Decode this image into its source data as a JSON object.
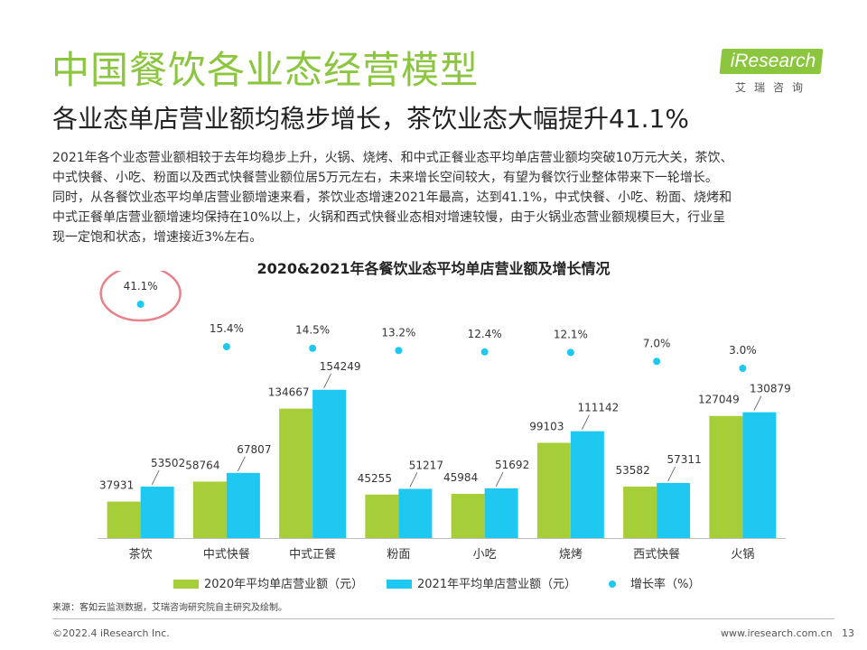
{
  "header": {
    "title": "中国餐饮各业态经营模型",
    "subtitle": "各业态单店营业额均稳步增长，茶饮业态大幅提升41.1%"
  },
  "logo": {
    "name": "iResearch",
    "sub": "艾瑞咨询",
    "color": "#8cc63f"
  },
  "paragraph": [
    "2021年各个业态营业额相较于去年均稳步上升，火锅、烧烤、和中式正餐业态平均单店营业额均突破10万元大关，茶饮、",
    "中式快餐、小吃、粉面以及西式快餐营业额位居5万元左右，未来增长空间较大，有望为餐饮行业整体带来下一轮增长。",
    "同时，从各餐饮业态平均单店营业额增速来看，茶饮业态增速2021年最高，达到41.1%，中式快餐、小吃、粉面、烧烤和",
    "中式正餐单店营业额增速均保持在10%以上，火锅和西式快餐业态相对增速较慢，由于火锅业态营业额规模巨大，行业呈",
    "现一定饱和状态，增速接近3%左右。"
  ],
  "chart_data": {
    "type": "bar",
    "title": "2020&2021年各餐饮业态平均单店营业额及增长情况",
    "categories": [
      "茶饮",
      "中式快餐",
      "中式正餐",
      "粉面",
      "小吃",
      "烧烤",
      "西式快餐",
      "火锅"
    ],
    "series": [
      {
        "name": "2020年平均单店营业额（元）",
        "values": [
          37931,
          58764,
          134667,
          45255,
          45984,
          99103,
          53582,
          127049
        ],
        "color": "#a6ce39"
      },
      {
        "name": "2021年平均单店营业额（元）",
        "values": [
          53502,
          67807,
          154249,
          51217,
          51692,
          111142,
          57311,
          130879
        ],
        "color": "#1ec8f0"
      },
      {
        "name": "增长率（%）",
        "type": "scatter",
        "values": [
          41.1,
          15.4,
          14.5,
          13.2,
          12.4,
          12.1,
          7.0,
          3.0
        ],
        "labels": [
          "41.1%",
          "15.4%",
          "14.5%",
          "13.2%",
          "12.4%",
          "12.1%",
          "7.0%",
          "3.0%"
        ],
        "color": "#1ec8f0"
      }
    ],
    "ylim": [
      0,
      170000
    ],
    "growth_display_range": [
      0,
      45
    ],
    "highlight": {
      "category": "茶饮",
      "series": "增长率（%）",
      "color": "#e8828a"
    },
    "xlabel": "",
    "ylabel": "",
    "grid": false,
    "legend": "bottom"
  },
  "legend": [
    {
      "label": "2020年平均单店营业额（元）",
      "color": "#a6ce39",
      "kind": "bar"
    },
    {
      "label": "2021年平均单店营业额（元）",
      "color": "#1ec8f0",
      "kind": "bar"
    },
    {
      "label": "增长率（%）",
      "color": "#1ec8f0",
      "kind": "dot"
    }
  ],
  "source": "来源：客如云监测数据，艾瑞咨询研究院自主研究及绘制。",
  "footer": {
    "copyright": "©2022.4 iResearch Inc.",
    "website": "www.iresearch.com.cn",
    "page": "13"
  }
}
